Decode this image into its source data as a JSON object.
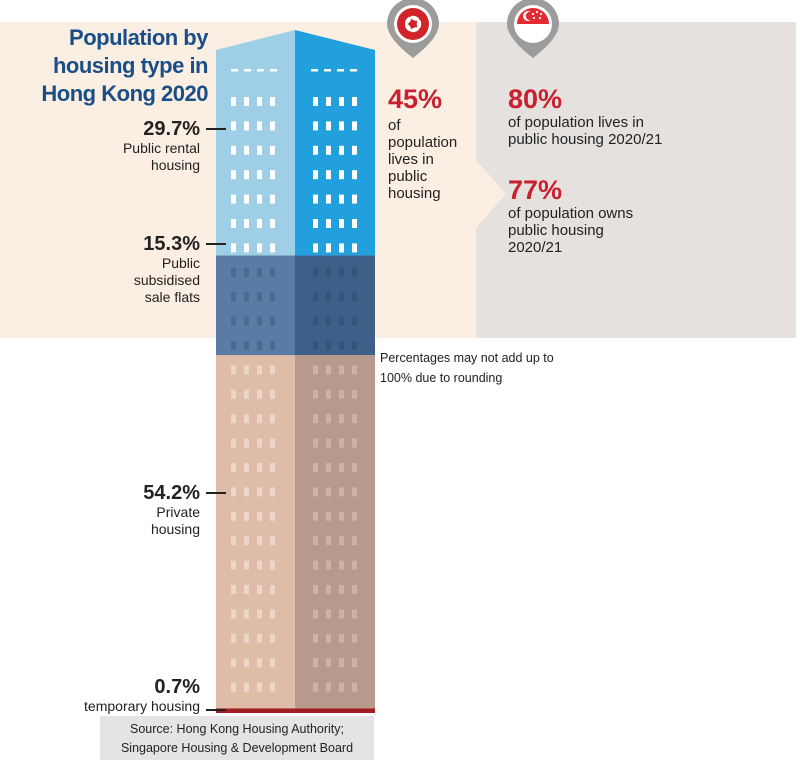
{
  "title": "Population by housing type in Hong Kong 2020",
  "colors": {
    "public_rental": "#9fcfe6",
    "public_rental_dark": "#22a0dd",
    "subsidised": "#5a7ba3",
    "subsidised_dark": "#3e5f87",
    "private": "#dfbca8",
    "private_dark": "#b89a8c",
    "temporary": "#a01e22",
    "accent_red": "#c8202f",
    "title_blue": "#1a4f86"
  },
  "hong_kong": {
    "flag_icon": "hong-kong-flag-icon",
    "stat_value": "45%",
    "stat_text": "of population lives in public housing"
  },
  "singapore": {
    "flag_icon": "singapore-flag-icon",
    "stat1_value": "80%",
    "stat1_text": "of population lives in public housing 2020/21",
    "stat2_value": "77%",
    "stat2_text": "of population owns public housing 2020/21"
  },
  "note": "Percentages may not add up to 100% due to rounding",
  "source": "Source: Hong Kong Housing Authority; Singapore Housing & Development Board",
  "chart_data": {
    "type": "stacked-bar",
    "title": "Population by housing type in Hong Kong 2020",
    "unit": "%",
    "categories": [
      "Public rental housing",
      "Public subsidised sale flats",
      "Private housing",
      "temporary housing"
    ],
    "values": [
      29.7,
      15.3,
      54.2,
      0.7
    ],
    "labels": [
      "29.7%",
      "15.3%",
      "54.2%",
      "0.7%"
    ]
  }
}
